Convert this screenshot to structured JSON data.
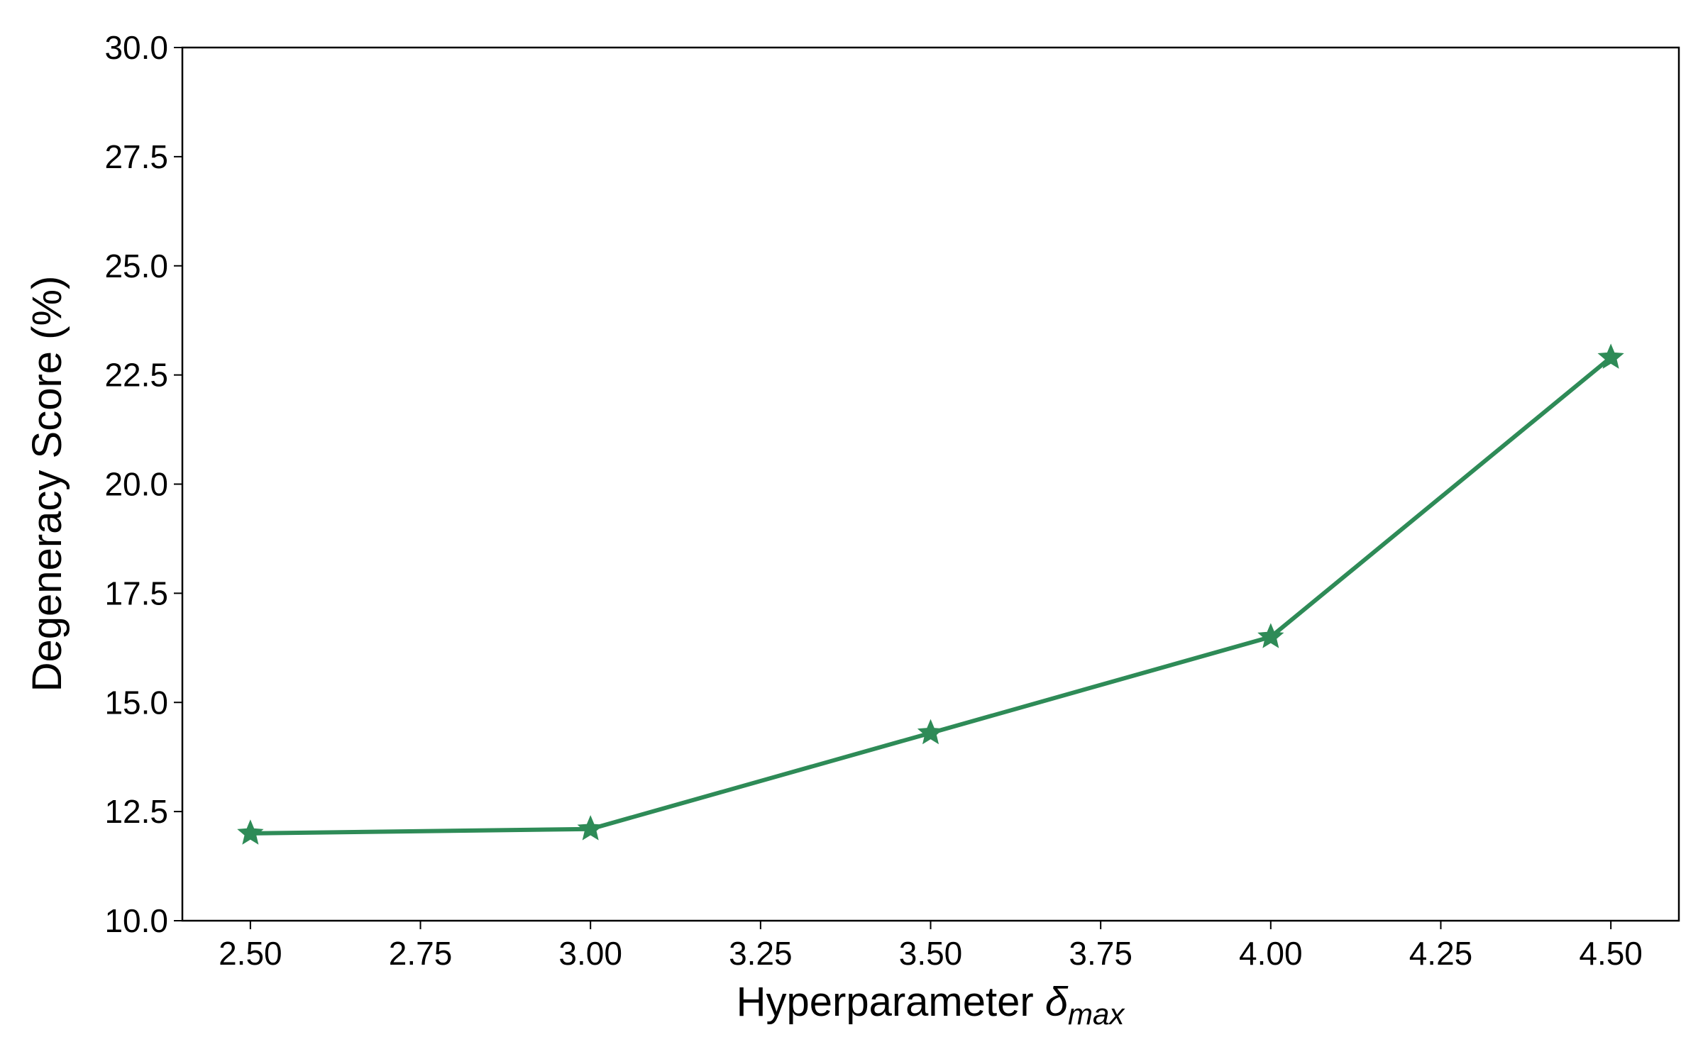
{
  "chart_data": {
    "type": "line",
    "xlabel": {
      "text": "Hyperparameter",
      "symbol": "δ",
      "subscript": "max"
    },
    "ylabel": "Degeneracy Score (%)",
    "x": [
      2.5,
      3.0,
      3.5,
      4.0,
      4.5
    ],
    "series": [
      {
        "color": "#2e8b57",
        "marker": "star",
        "values": [
          12.0,
          12.1,
          14.3,
          16.5,
          22.9
        ]
      }
    ],
    "xlim": [
      2.4,
      4.6
    ],
    "ylim": [
      10,
      30
    ],
    "xticks": [
      {
        "value": 2.5,
        "label": "2.50"
      },
      {
        "value": 2.75,
        "label": "2.75"
      },
      {
        "value": 3.0,
        "label": "3.00"
      },
      {
        "value": 3.25,
        "label": "3.25"
      },
      {
        "value": 3.5,
        "label": "3.50"
      },
      {
        "value": 3.75,
        "label": "3.75"
      },
      {
        "value": 4.0,
        "label": "4.00"
      },
      {
        "value": 4.25,
        "label": "4.25"
      },
      {
        "value": 4.5,
        "label": "4.50"
      }
    ],
    "yticks": [
      {
        "value": 10,
        "label": "10.0"
      },
      {
        "value": 12.5,
        "label": "12.5"
      },
      {
        "value": 15,
        "label": "15.0"
      },
      {
        "value": 17.5,
        "label": "17.5"
      },
      {
        "value": 20,
        "label": "20.0"
      },
      {
        "value": 22.5,
        "label": "22.5"
      },
      {
        "value": 25,
        "label": "25.0"
      },
      {
        "value": 27.5,
        "label": "27.5"
      },
      {
        "value": 30,
        "label": "30.0"
      }
    ],
    "grid": false
  }
}
